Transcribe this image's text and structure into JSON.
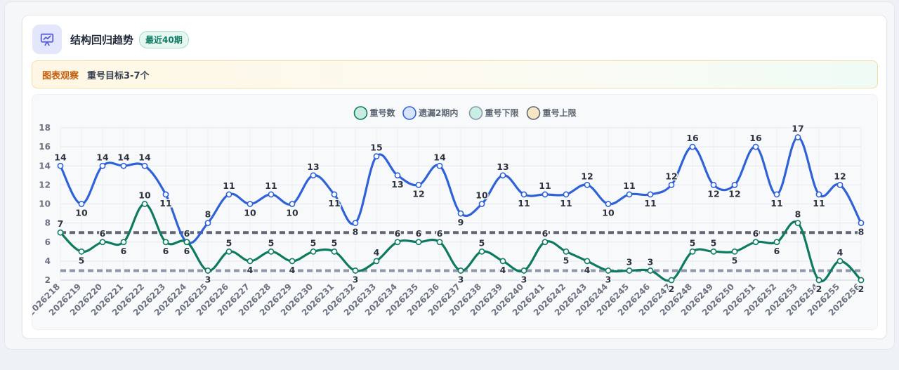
{
  "header": {
    "title": "结构回归趋势",
    "badge": "最近40期",
    "icon": "presentation-chart-icon"
  },
  "note": {
    "label": "图表观察",
    "text": "重号目标3-7个"
  },
  "colors": {
    "repeat": "#0e7a5f",
    "miss2": "#2f62d6",
    "lower": "#8e98aa",
    "upper": "#5f6675",
    "accent": "#5b5fd6"
  },
  "chart_data": {
    "type": "line",
    "ylim": [
      2,
      18
    ],
    "yticks": [
      2,
      4,
      6,
      8,
      10,
      12,
      14,
      16,
      18
    ],
    "grid": true,
    "legend_position": "top-center",
    "x": [
      "2026218",
      "2026219",
      "2026220",
      "2026221",
      "2026222",
      "2026223",
      "2026224",
      "2026225",
      "2026226",
      "2026227",
      "2026228",
      "2026229",
      "2026230",
      "2026231",
      "2026232",
      "2026233",
      "2026234",
      "2026235",
      "2026236",
      "2026237",
      "2026238",
      "2026239",
      "2026240",
      "2026241",
      "2026242",
      "2026243",
      "2026244",
      "2026245",
      "2026246",
      "2026247",
      "2026248",
      "2026249",
      "2026250",
      "2026251",
      "2026252",
      "2026253",
      "2026254",
      "2026255",
      "2026256"
    ],
    "series": [
      {
        "name": "重号数",
        "values": [
          7,
          5,
          6,
          6,
          10,
          6,
          6,
          3,
          5,
          4,
          5,
          4,
          5,
          5,
          3,
          4,
          6,
          6,
          6,
          3,
          5,
          4,
          3,
          6,
          5,
          4,
          3,
          3,
          3,
          2,
          5,
          5,
          5,
          6,
          6,
          8,
          2,
          4,
          2
        ]
      },
      {
        "name": "遗漏2期内",
        "values": [
          14,
          10,
          14,
          14,
          14,
          11,
          6,
          8,
          11,
          10,
          11,
          10,
          13,
          11,
          8,
          15,
          13,
          12,
          14,
          9,
          10,
          13,
          11,
          11,
          11,
          12,
          10,
          11,
          11,
          12,
          16,
          12,
          12,
          16,
          11,
          17,
          11,
          12,
          8
        ]
      },
      {
        "name": "重号下限",
        "value": 3
      },
      {
        "name": "重号上限",
        "value": 7
      }
    ]
  }
}
